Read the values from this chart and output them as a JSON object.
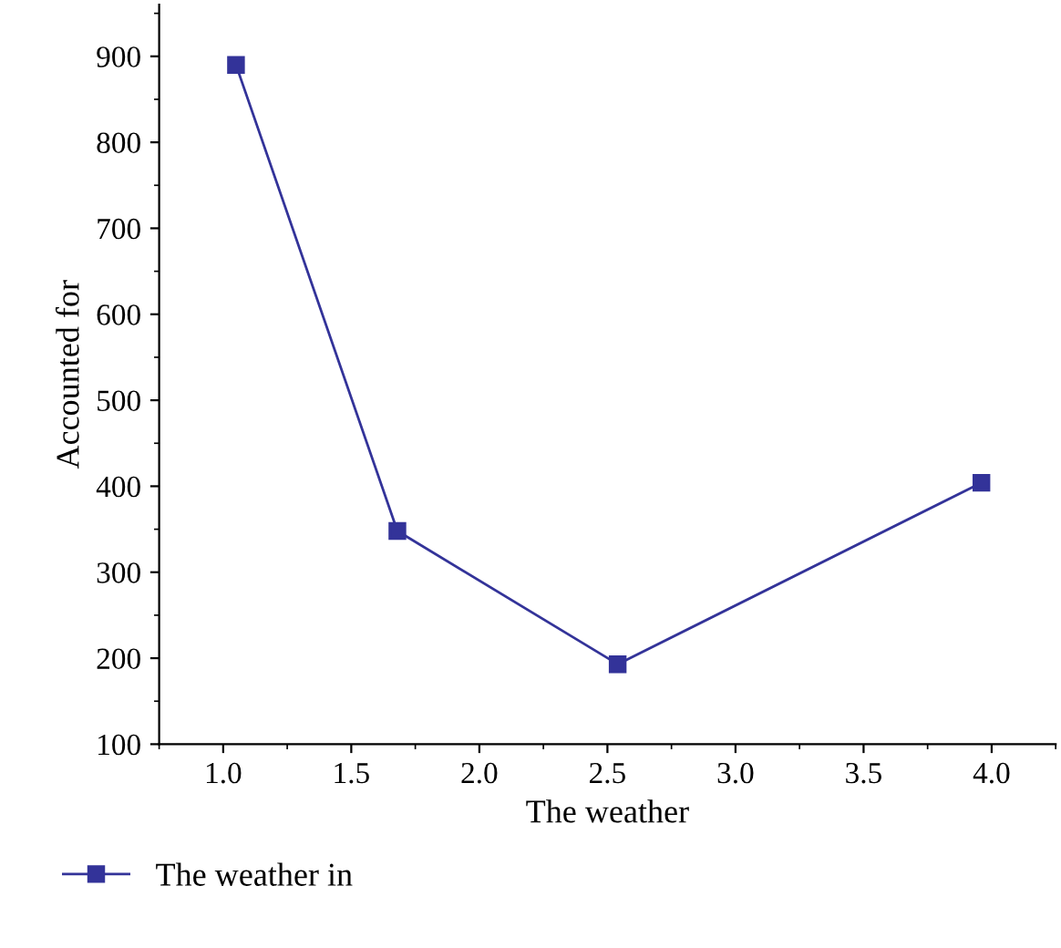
{
  "chart_data": {
    "type": "line",
    "xlabel": "The weather",
    "ylabel": "Accounted for",
    "x": [
      1.05,
      1.68,
      2.54,
      3.96
    ],
    "series": [
      {
        "name": "The weather in",
        "color": "#333399",
        "values": [
          890,
          348,
          193,
          404
        ]
      }
    ],
    "xlim": [
      0.75,
      4.25
    ],
    "xticks": [
      {
        "value": 1.0,
        "label": "1.0"
      },
      {
        "value": 1.5,
        "label": "1.5"
      },
      {
        "value": 2.0,
        "label": "2.0"
      },
      {
        "value": 2.5,
        "label": "2.5"
      },
      {
        "value": 3.0,
        "label": "3.0"
      },
      {
        "value": 3.5,
        "label": "3.5"
      },
      {
        "value": 4.0,
        "label": "4.0"
      }
    ],
    "ylim": [
      100,
      960
    ],
    "yticks": [
      100,
      200,
      300,
      400,
      500,
      600,
      700,
      800,
      900
    ],
    "grid": false,
    "legend": "bottom left",
    "marker": "square",
    "line_style": "solid"
  }
}
